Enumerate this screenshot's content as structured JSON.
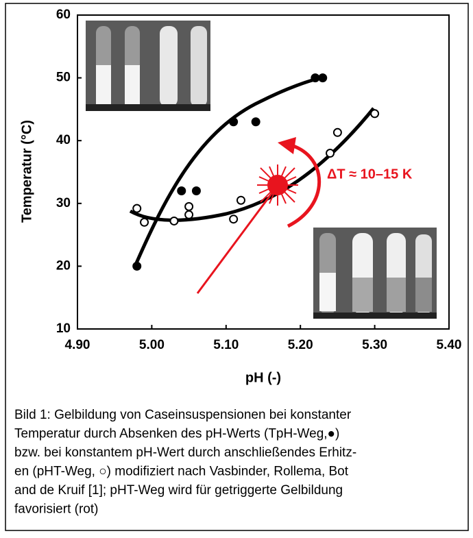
{
  "chart_data": {
    "type": "scatter",
    "x_label": "pH (-)",
    "y_label": "Temperatur (°C)",
    "xlim": [
      4.9,
      5.4
    ],
    "ylim": [
      10,
      60
    ],
    "xticks": [
      {
        "value": 4.9,
        "label": "4.90"
      },
      {
        "value": 5.0,
        "label": "5.00"
      },
      {
        "value": 5.1,
        "label": "5.10"
      },
      {
        "value": 5.2,
        "label": "5.20"
      },
      {
        "value": 5.3,
        "label": "5.30"
      },
      {
        "value": 5.4,
        "label": "5.40"
      }
    ],
    "yticks": [
      10,
      20,
      30,
      40,
      50,
      60
    ],
    "series": [
      {
        "marker": "filled",
        "color": "#000000",
        "x": [
          4.98,
          5.04,
          5.06,
          5.11,
          5.14,
          5.22,
          5.23
        ],
        "values": [
          20,
          32,
          32,
          43,
          43,
          50,
          50
        ]
      },
      {
        "marker": "open",
        "color": "#000000",
        "x": [
          4.98,
          4.99,
          5.03,
          5.05,
          5.05,
          5.11,
          5.12,
          5.24,
          5.25,
          5.3
        ],
        "values": [
          29.2,
          27,
          27.2,
          29.5,
          28.2,
          27.5,
          30.5,
          38,
          41.3,
          44.3
        ]
      }
    ],
    "annotation": {
      "text": "ΔT ≈ 10–15 K",
      "color": "#e8141e"
    }
  },
  "caption": [
    "Bild 1: Gelbildung von Caseinsuspensionen bei konstanter",
    "Temperatur durch Absenken des pH-Werts (TpH-Weg,●)",
    "bzw. bei konstantem pH-Wert durch anschließendes Erhitz-",
    "en (pHT-Weg, ○) modifiziert nach Vasbinder, Rollema, Bot",
    "and de Kruif [1]; pHT-Weg wird für getriggerte Gelbildung",
    "favorisiert (rot)"
  ]
}
